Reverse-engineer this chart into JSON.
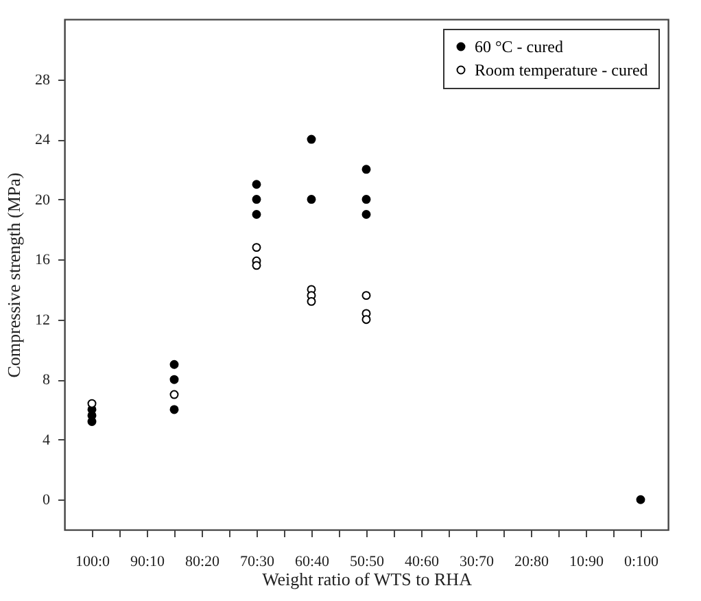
{
  "chart_data": {
    "type": "scatter",
    "xlabel": "Weight ratio of WTS to RHA",
    "ylabel": "Compressive strength (MPa)",
    "categories": [
      "100:0",
      null,
      "90:10",
      null,
      "80:20",
      null,
      "70:30",
      null,
      "60:40",
      null,
      "50:50",
      null,
      "40:60",
      null,
      "30:70",
      null,
      "20:80",
      null,
      "10:90",
      null,
      "0:100"
    ],
    "ylim": [
      -2,
      32
    ],
    "yticks": [
      0,
      4,
      8,
      12,
      16,
      20,
      24,
      28
    ],
    "grid": false,
    "legend": "top right",
    "marker": "circle",
    "series": [
      {
        "name": "60 °C - cured",
        "color": "#000000",
        "values": [
          6,
          null,
          null,
          9,
          null,
          null,
          21,
          null,
          24,
          null,
          22,
          null,
          null,
          null,
          null,
          null,
          null,
          null,
          null,
          null,
          0
        ]
      },
      {
        "color": "#000000",
        "values": [
          5.6,
          null,
          null,
          8,
          null,
          null,
          20,
          null,
          20,
          null,
          20,
          null,
          null,
          null,
          null,
          null,
          null,
          null,
          null,
          null,
          null
        ]
      },
      {
        "color": "#000000",
        "values": [
          5.2,
          null,
          null,
          6,
          null,
          null,
          19,
          null,
          null,
          null,
          19,
          null,
          null,
          null,
          null,
          null,
          null,
          null,
          null,
          null,
          null
        ]
      },
      {
        "name": "Room temperature - cured",
        "color": "#ffffff",
        "values": [
          6.4,
          null,
          null,
          7,
          null,
          null,
          16.8,
          null,
          14,
          null,
          13.6,
          null,
          null,
          null,
          null,
          null,
          null,
          null,
          null,
          null,
          null
        ]
      },
      {
        "color": "#ffffff",
        "values": [
          null,
          null,
          null,
          null,
          null,
          null,
          15.9,
          null,
          13.6,
          null,
          12.4,
          null,
          null,
          null,
          null,
          null,
          null,
          null,
          null,
          null,
          null
        ]
      },
      {
        "color": "#ffffff",
        "values": [
          null,
          null,
          null,
          null,
          null,
          null,
          15.6,
          null,
          13.2,
          null,
          12,
          null,
          null,
          null,
          null,
          null,
          null,
          null,
          null,
          null,
          null
        ]
      }
    ]
  }
}
